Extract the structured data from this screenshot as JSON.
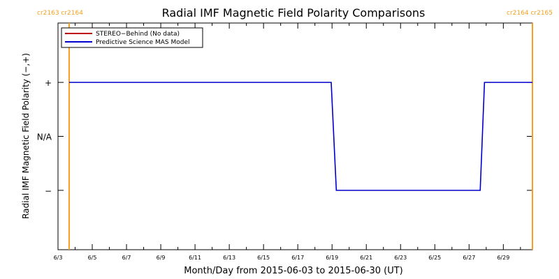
{
  "chart_data": {
    "type": "line",
    "title": "Radial IMF Magnetic Field Polarity Comparisons",
    "xlabel": "Month/Day from 2015-06-03 to 2015-06-30 (UT)",
    "ylabel": "Radial IMF Magnetic Field Polarity (−,+)",
    "x_tick_labels": [
      "6/3",
      "6/5",
      "6/7",
      "6/9",
      "6/11",
      "6/13",
      "6/15",
      "6/17",
      "6/19",
      "6/21",
      "6/23",
      "6/25",
      "6/27",
      "6/29"
    ],
    "x_tick_days": [
      3,
      5,
      7,
      9,
      11,
      13,
      15,
      17,
      19,
      21,
      23,
      25,
      27,
      29
    ],
    "xlim": [
      3,
      30.7
    ],
    "y_tick_labels": [
      "+",
      "N/A",
      "−"
    ],
    "y_tick_values": [
      1,
      0,
      -1
    ],
    "ylim": [
      -2.1,
      2.1
    ],
    "carrington_markers": [
      {
        "label": "cr2163 cr2164",
        "day": 3.65,
        "label_side": "left"
      },
      {
        "label": "cr2164 cr2165",
        "day": 30.7,
        "label_side": "right"
      }
    ],
    "legend": {
      "position": "top-left",
      "entries": [
        {
          "name": "STEREO−Behind (No data)",
          "color": "#c00000"
        },
        {
          "name": "Predictive Science MAS Model",
          "color": "#0000cc"
        }
      ]
    },
    "series": [
      {
        "name": "Predictive Science MAS Model",
        "color": "#0000cc",
        "x": [
          3.65,
          18.95,
          19.25,
          27.65,
          27.9,
          30.7
        ],
        "y": [
          1,
          1,
          -1,
          -1,
          1,
          1
        ]
      }
    ],
    "colors": {
      "marker": "#f5a020",
      "axis": "#000000"
    }
  }
}
